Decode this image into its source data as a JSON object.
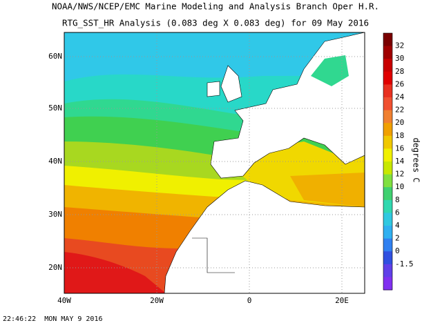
{
  "header": {
    "title_line1": "NOAA/NWS/NCEP/EMC Marine Modeling and Analysis Branch Oper H.R.",
    "title_line2": "RTG_SST_HR Analysis (0.083 deg X 0.083 deg) for 09 May 2016"
  },
  "map": {
    "lat_labels": [
      "60N",
      "50N",
      "40N",
      "30N",
      "20N"
    ],
    "lon_labels": [
      "40W",
      "20W",
      "0",
      "20E"
    ]
  },
  "colorbar": {
    "labels": [
      "32",
      "30",
      "28",
      "26",
      "24",
      "22",
      "20",
      "18",
      "16",
      "14",
      "12",
      "10",
      "8",
      "6",
      "4",
      "2",
      "0",
      "-1.5"
    ],
    "unit_label": "degrees C"
  },
  "footer": {
    "timestamp": "22:46:22  MON MAY 9 2016"
  }
}
